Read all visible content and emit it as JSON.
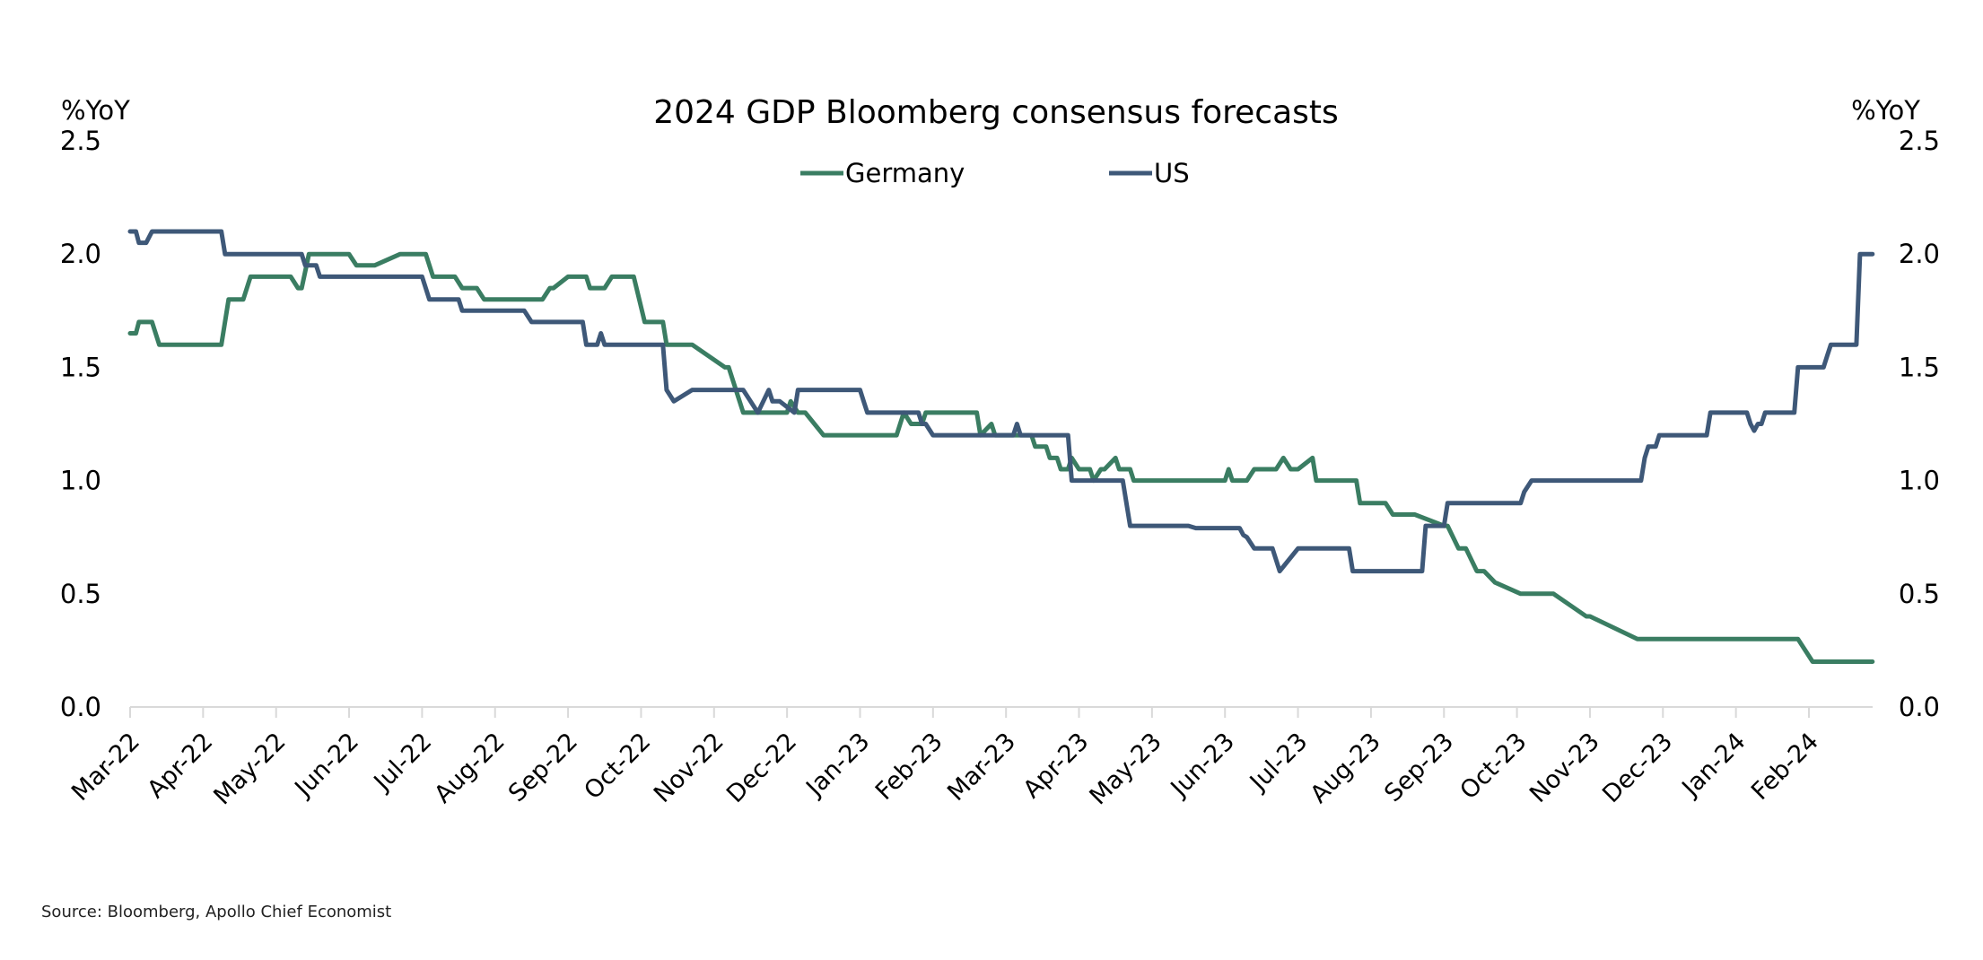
{
  "chart_data": {
    "type": "line",
    "title": "2024 GDP Bloomberg consensus forecasts",
    "ylabel_left": "%YoY",
    "ylabel_right": "%YoY",
    "xlabel": "",
    "ylim": [
      0,
      2.5
    ],
    "yticks": [
      "0.0",
      "0.5",
      "1.0",
      "1.5",
      "2.0",
      "2.5"
    ],
    "ytick_values": [
      0,
      0.5,
      1.0,
      1.5,
      2.0,
      2.5
    ],
    "x_unit": "months since Mar-22",
    "xlim": [
      0,
      23.87
    ],
    "xticks": [
      "Mar-22",
      "Apr-22",
      "May-22",
      "Jun-22",
      "Jul-22",
      "Aug-22",
      "Sep-22",
      "Oct-22",
      "Nov-22",
      "Dec-22",
      "Jan-23",
      "Feb-23",
      "Mar-23",
      "Apr-23",
      "May-23",
      "Jun-23",
      "Jul-23",
      "Aug-23",
      "Sep-23",
      "Oct-23",
      "Nov-23",
      "Dec-23",
      "Jan-24",
      "Feb-24"
    ],
    "grid": false,
    "legend": {
      "placement": "top-center"
    },
    "source": "Source: Bloomberg, Apollo Chief Economist",
    "series": [
      {
        "name": "Germany",
        "color": "#3a7d62",
        "x": [
          0,
          0.08,
          0.12,
          0.3,
          0.4,
          1.25,
          1.35,
          1.55,
          1.65,
          2.2,
          2.3,
          2.35,
          2.45,
          2.6,
          3.0,
          3.1,
          3.3,
          3.35,
          3.7,
          3.8,
          4.05,
          4.15,
          4.45,
          4.55,
          4.75,
          4.85,
          5.6,
          5.65,
          5.75,
          5.8,
          6.0,
          6.05,
          6.25,
          6.3,
          6.5,
          6.6,
          6.9,
          7.05,
          7.1,
          7.3,
          7.35,
          7.7,
          8.15,
          8.2,
          8.4,
          8.45,
          8.6,
          8.7,
          9.0,
          9.05,
          9.15,
          9.25,
          9.5,
          9.6,
          10.5,
          10.55,
          10.6,
          10.7,
          10.85,
          10.9,
          11.6,
          11.65,
          11.8,
          11.85,
          12.35,
          12.4,
          12.55,
          12.6,
          12.7,
          12.75,
          12.85,
          12.9,
          13.0,
          13.05,
          13.15,
          13.2,
          13.3,
          13.35,
          13.5,
          13.55,
          13.7,
          13.75,
          13.9,
          14.1,
          14.15,
          15.0,
          15.05,
          15.1,
          15.3,
          15.4,
          15.7,
          15.8,
          15.9,
          16.0,
          16.2,
          16.25,
          16.8,
          16.85,
          17.2,
          17.3,
          17.5,
          17.6,
          18.0,
          18.05,
          18.2,
          18.3,
          18.45,
          18.55,
          18.7,
          19.05,
          19.45,
          19.5,
          19.95,
          20.0,
          20.65,
          21.05,
          21.4,
          22.85,
          23.05,
          23.87
        ],
        "values": [
          1.65,
          1.65,
          1.7,
          1.7,
          1.6,
          1.6,
          1.8,
          1.8,
          1.9,
          1.9,
          1.85,
          1.85,
          2.0,
          2.0,
          2.0,
          1.95,
          1.95,
          1.95,
          2.0,
          2.0,
          2.0,
          1.9,
          1.9,
          1.85,
          1.85,
          1.8,
          1.8,
          1.8,
          1.85,
          1.85,
          1.9,
          1.9,
          1.9,
          1.85,
          1.85,
          1.9,
          1.9,
          1.7,
          1.7,
          1.7,
          1.6,
          1.6,
          1.5,
          1.5,
          1.3,
          1.3,
          1.3,
          1.3,
          1.3,
          1.35,
          1.3,
          1.3,
          1.2,
          1.2,
          1.2,
          1.25,
          1.3,
          1.25,
          1.25,
          1.3,
          1.3,
          1.2,
          1.25,
          1.2,
          1.2,
          1.15,
          1.15,
          1.1,
          1.1,
          1.05,
          1.05,
          1.1,
          1.05,
          1.05,
          1.05,
          1.0,
          1.05,
          1.05,
          1.1,
          1.05,
          1.05,
          1.0,
          1.0,
          1.0,
          1.0,
          1.0,
          1.05,
          1.0,
          1.0,
          1.05,
          1.05,
          1.1,
          1.05,
          1.05,
          1.1,
          1.0,
          1.0,
          0.9,
          0.9,
          0.85,
          0.85,
          0.85,
          0.8,
          0.8,
          0.7,
          0.7,
          0.6,
          0.6,
          0.55,
          0.5,
          0.5,
          0.5,
          0.4,
          0.4,
          0.3,
          0.3,
          0.3,
          0.3,
          0.2,
          0.2
        ]
      },
      {
        "name": "US",
        "color": "#3e5878",
        "x": [
          0,
          0.08,
          0.12,
          0.22,
          0.3,
          1.25,
          1.3,
          2.35,
          2.4,
          2.55,
          2.6,
          4.0,
          4.1,
          4.5,
          4.55,
          5.4,
          5.5,
          6.2,
          6.25,
          6.4,
          6.45,
          6.5,
          7.3,
          7.35,
          7.45,
          7.7,
          8.4,
          8.5,
          8.6,
          8.75,
          8.8,
          8.9,
          9.1,
          9.15,
          9.2,
          9.3,
          10.0,
          10.05,
          10.1,
          10.15,
          10.8,
          10.85,
          10.9,
          11.0,
          12.1,
          12.15,
          12.2,
          12.25,
          12.85,
          12.9,
          13.6,
          13.7,
          14.5,
          14.6,
          15.2,
          15.25,
          15.3,
          15.4,
          15.65,
          15.75,
          16.0,
          16.1,
          16.7,
          16.75,
          17.7,
          17.75,
          18.0,
          18.05,
          19.05,
          19.1,
          19.2,
          20.7,
          20.75,
          20.8,
          20.9,
          20.95,
          21.0,
          21.6,
          21.65,
          22.15,
          22.2,
          22.25,
          22.3,
          22.35,
          22.4,
          22.45,
          22.8,
          22.85,
          23.2,
          23.25,
          23.3,
          23.35,
          23.65,
          23.7,
          23.87
        ],
        "values": [
          2.1,
          2.1,
          2.05,
          2.05,
          2.1,
          2.1,
          2.0,
          2.0,
          1.95,
          1.95,
          1.9,
          1.9,
          1.8,
          1.8,
          1.75,
          1.75,
          1.7,
          1.7,
          1.6,
          1.6,
          1.65,
          1.6,
          1.6,
          1.4,
          1.35,
          1.4,
          1.4,
          1.35,
          1.3,
          1.4,
          1.35,
          1.35,
          1.3,
          1.4,
          1.4,
          1.4,
          1.4,
          1.35,
          1.3,
          1.3,
          1.3,
          1.25,
          1.25,
          1.2,
          1.2,
          1.25,
          1.2,
          1.2,
          1.2,
          1.0,
          1.0,
          0.8,
          0.8,
          0.79,
          0.79,
          0.76,
          0.75,
          0.7,
          0.7,
          0.6,
          0.7,
          0.7,
          0.7,
          0.6,
          0.6,
          0.8,
          0.8,
          0.9,
          0.9,
          0.95,
          1.0,
          1.0,
          1.1,
          1.15,
          1.15,
          1.2,
          1.2,
          1.2,
          1.3,
          1.3,
          1.25,
          1.22,
          1.25,
          1.25,
          1.3,
          1.3,
          1.3,
          1.5,
          1.5,
          1.55,
          1.6,
          1.6,
          1.6,
          2.0,
          2.0
        ]
      }
    ]
  }
}
